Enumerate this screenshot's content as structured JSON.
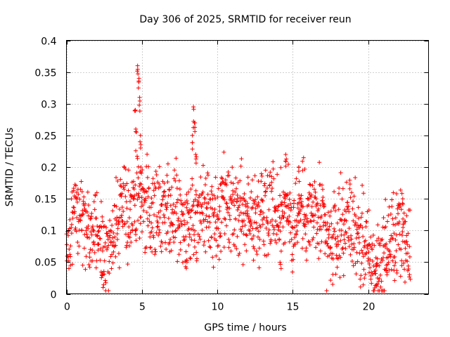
{
  "chart_data": {
    "type": "scatter",
    "title": "Day 306 of 2025, SRMTID for receiver reun",
    "xlabel": "GPS time / hours",
    "ylabel": "SRMTID / TECUs",
    "xlim": [
      0,
      24
    ],
    "ylim": [
      0,
      0.4
    ],
    "x_ticks": [
      0,
      5,
      10,
      15,
      20
    ],
    "x_tick_labels": [
      "0",
      "5",
      "10",
      "15",
      "20"
    ],
    "y_ticks": [
      0,
      0.05,
      0.1,
      0.15,
      0.2,
      0.25,
      0.3,
      0.35,
      0.4
    ],
    "y_tick_labels": [
      "0",
      "0.05",
      "0.1",
      "0.15",
      "0.2",
      "0.25",
      "0.3",
      "0.35",
      "0.4"
    ],
    "grid": true,
    "marker": "plus",
    "series_color": "#ff0000",
    "data_x_range": [
      0,
      22.8
    ],
    "trend": [
      {
        "x": 0.0,
        "y": 0.07
      },
      {
        "x": 0.3,
        "y": 0.08
      },
      {
        "x": 0.5,
        "y": 0.15
      },
      {
        "x": 0.8,
        "y": 0.14
      },
      {
        "x": 1.2,
        "y": 0.12
      },
      {
        "x": 1.5,
        "y": 0.1
      },
      {
        "x": 2.0,
        "y": 0.11
      },
      {
        "x": 2.3,
        "y": 0.07
      },
      {
        "x": 2.7,
        "y": 0.08
      },
      {
        "x": 3.2,
        "y": 0.1
      },
      {
        "x": 3.7,
        "y": 0.13
      },
      {
        "x": 4.2,
        "y": 0.12
      },
      {
        "x": 4.6,
        "y": 0.15
      },
      {
        "x": 5.0,
        "y": 0.14
      },
      {
        "x": 5.5,
        "y": 0.13
      },
      {
        "x": 6.0,
        "y": 0.12
      },
      {
        "x": 6.5,
        "y": 0.14
      },
      {
        "x": 7.0,
        "y": 0.13
      },
      {
        "x": 7.5,
        "y": 0.13
      },
      {
        "x": 8.0,
        "y": 0.1
      },
      {
        "x": 8.5,
        "y": 0.12
      },
      {
        "x": 9.0,
        "y": 0.13
      },
      {
        "x": 9.5,
        "y": 0.12
      },
      {
        "x": 10.0,
        "y": 0.11
      },
      {
        "x": 10.5,
        "y": 0.13
      },
      {
        "x": 11.0,
        "y": 0.12
      },
      {
        "x": 11.5,
        "y": 0.13
      },
      {
        "x": 12.0,
        "y": 0.12
      },
      {
        "x": 12.5,
        "y": 0.11
      },
      {
        "x": 13.0,
        "y": 0.14
      },
      {
        "x": 13.5,
        "y": 0.15
      },
      {
        "x": 14.0,
        "y": 0.12
      },
      {
        "x": 14.5,
        "y": 0.14
      },
      {
        "x": 15.0,
        "y": 0.11
      },
      {
        "x": 15.5,
        "y": 0.13
      },
      {
        "x": 16.0,
        "y": 0.13
      },
      {
        "x": 16.5,
        "y": 0.12
      },
      {
        "x": 17.0,
        "y": 0.11
      },
      {
        "x": 17.5,
        "y": 0.07
      },
      {
        "x": 18.0,
        "y": 0.1
      },
      {
        "x": 18.5,
        "y": 0.12
      },
      {
        "x": 19.0,
        "y": 0.11
      },
      {
        "x": 19.5,
        "y": 0.09
      },
      {
        "x": 20.0,
        "y": 0.06
      },
      {
        "x": 20.5,
        "y": 0.04
      },
      {
        "x": 21.0,
        "y": 0.06
      },
      {
        "x": 21.5,
        "y": 0.08
      },
      {
        "x": 22.0,
        "y": 0.1
      },
      {
        "x": 22.5,
        "y": 0.09
      },
      {
        "x": 22.8,
        "y": 0.07
      }
    ],
    "spikes": [
      {
        "x": 4.55,
        "y": 0.29
      },
      {
        "x": 4.62,
        "y": 0.26
      },
      {
        "x": 4.72,
        "y": 0.36
      },
      {
        "x": 4.78,
        "y": 0.34
      },
      {
        "x": 4.84,
        "y": 0.31
      },
      {
        "x": 4.9,
        "y": 0.25
      },
      {
        "x": 4.95,
        "y": 0.2
      },
      {
        "x": 8.35,
        "y": 0.25
      },
      {
        "x": 8.42,
        "y": 0.295
      },
      {
        "x": 8.5,
        "y": 0.27
      },
      {
        "x": 8.58,
        "y": 0.22
      },
      {
        "x": 14.55,
        "y": 0.22
      },
      {
        "x": 15.4,
        "y": 0.2
      },
      {
        "x": 22.3,
        "y": 0.15
      }
    ],
    "dips": [
      {
        "x": 2.4,
        "y": 0.03
      },
      {
        "x": 8.0,
        "y": 0.05
      },
      {
        "x": 14.2,
        "y": 0.04
      },
      {
        "x": 20.6,
        "y": 0.012
      },
      {
        "x": 21.2,
        "y": 0.03
      }
    ],
    "scatter_spread": 0.035,
    "point_count": 1400,
    "random_seed": 306
  }
}
